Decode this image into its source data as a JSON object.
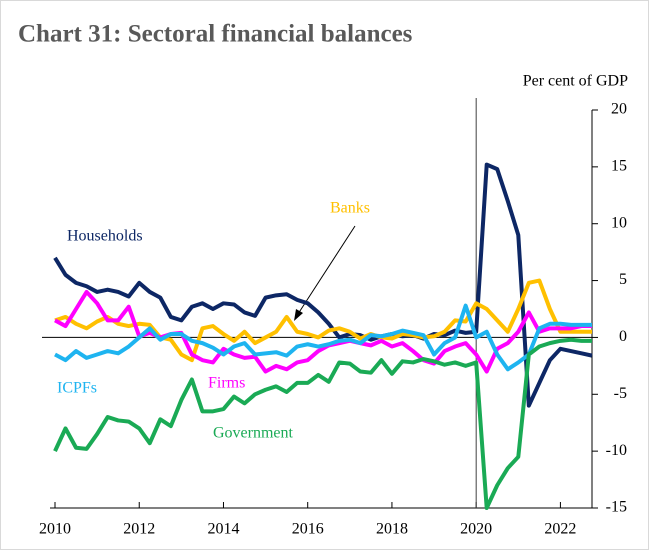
{
  "chart_data": {
    "type": "line",
    "title": "Chart 31:  Sectoral financial balances",
    "y_axis_label": "Per cent of GDP",
    "x": [
      2010,
      2010.25,
      2010.5,
      2010.75,
      2011,
      2011.25,
      2011.5,
      2011.75,
      2012,
      2012.25,
      2012.5,
      2012.75,
      2013,
      2013.25,
      2013.5,
      2013.75,
      2014,
      2014.25,
      2014.5,
      2014.75,
      2015,
      2015.25,
      2015.5,
      2015.75,
      2016,
      2016.25,
      2016.5,
      2016.75,
      2017,
      2017.25,
      2017.5,
      2017.75,
      2018,
      2018.25,
      2018.5,
      2018.75,
      2019,
      2019.25,
      2019.5,
      2019.75,
      2020,
      2020.25,
      2020.5,
      2020.75,
      2021,
      2021.25,
      2021.5,
      2021.75,
      2022,
      2022.25,
      2022.5,
      2022.75
    ],
    "series": [
      {
        "name": "Households",
        "color": "#0d2765",
        "values": [
          7,
          5.5,
          4.8,
          4.5,
          4,
          4.2,
          4,
          3.6,
          4.8,
          4.0,
          3.5,
          1.8,
          1.5,
          2.7,
          3,
          2.5,
          3,
          2.9,
          2.2,
          1.9,
          3.5,
          3.7,
          3.8,
          3.3,
          3.0,
          2.2,
          1.2,
          0,
          0.3,
          0.2,
          -0.2,
          0.1,
          0.3,
          0.1,
          0.2,
          -0.1,
          0.3,
          0.2,
          0.6,
          0.4,
          0.5,
          15.2,
          14.8,
          12,
          9,
          -6,
          -4,
          -2,
          -1,
          -1.2,
          -1.4,
          -1.6
        ]
      },
      {
        "name": "Banks",
        "color": "#ffc000",
        "values": [
          1.5,
          1.8,
          1.2,
          0.8,
          1.4,
          1.8,
          1.2,
          1.0,
          1.2,
          1.1,
          0,
          -0.2,
          -1.5,
          -2,
          0.8,
          1,
          0.3,
          -0.3,
          0.5,
          -0.5,
          0,
          0.5,
          1.8,
          0.5,
          0.3,
          0,
          0.6,
          0.8,
          0.5,
          -0.1,
          0.3,
          0,
          -0.1,
          0.3,
          0.2,
          0,
          0.1,
          0.5,
          1.5,
          1.4,
          3,
          2.5,
          1.5,
          0.5,
          2.5,
          4.8,
          5,
          2.5,
          0.5,
          0.5,
          0.5,
          0.5
        ]
      },
      {
        "name": "Firms",
        "color": "#ff00ff",
        "values": [
          1.5,
          1,
          2.5,
          4,
          3,
          1.5,
          1.5,
          2.7,
          0.1,
          0.4,
          0,
          0.3,
          0.4,
          -1.5,
          -2,
          -2.2,
          -1,
          -1.5,
          -1.8,
          -1.7,
          -3,
          -2.5,
          -2.8,
          -2.2,
          -2,
          -1.2,
          -0.7,
          -0.5,
          -0.3,
          -0.5,
          -0.7,
          -0.3,
          -0.8,
          -0.5,
          -1.2,
          -2,
          -2.3,
          -1.2,
          -0.8,
          -0.5,
          -1.5,
          -3,
          -1,
          -0.5,
          0.5,
          2.2,
          0.5,
          0.8,
          0.8,
          0.8,
          1,
          1
        ]
      },
      {
        "name": "ICPFs",
        "color": "#1eb4f0",
        "values": [
          -1.5,
          -2,
          -1.2,
          -1.8,
          -1.5,
          -1.2,
          -1.4,
          -0.8,
          0,
          0.8,
          -0.2,
          0.3,
          0.3,
          -0.3,
          -0.5,
          -0.9,
          -1.5,
          -0.8,
          -0.5,
          -1.5,
          -1.4,
          -1.3,
          -1.6,
          -0.8,
          -0.6,
          -0.8,
          -0.6,
          -0.3,
          -0.2,
          -0.5,
          0.2,
          0.1,
          0.3,
          0.6,
          0.4,
          0.2,
          -1.5,
          -0.5,
          0,
          2.8,
          0,
          0.5,
          -1.5,
          -2.8,
          -2.2,
          -1.5,
          0.8,
          1.2,
          1.2,
          1.1,
          1.1,
          1.1
        ]
      },
      {
        "name": "Government",
        "color": "#1aaa55",
        "values": [
          -10,
          -8,
          -9.7,
          -9.8,
          -8.5,
          -7,
          -7.3,
          -7.4,
          -8,
          -9.3,
          -7.2,
          -7.8,
          -5.5,
          -3.7,
          -6.5,
          -6.5,
          -6.3,
          -5.2,
          -5.8,
          -5,
          -4.6,
          -4.3,
          -4.8,
          -4,
          -4,
          -3.3,
          -3.9,
          -2.2,
          -2.3,
          -3,
          -3.1,
          -2,
          -3.2,
          -2.1,
          -2.2,
          -1.9,
          -2.1,
          -2.4,
          -2.2,
          -2.5,
          -2.2,
          -15,
          -13,
          -11.5,
          -10.5,
          -1.5,
          -0.8,
          -0.5,
          -0.3,
          -0.2,
          -0.3,
          -0.3
        ]
      }
    ],
    "xlim": [
      2010,
      2022.75
    ],
    "xticks": [
      2010,
      2012,
      2014,
      2016,
      2018,
      2020,
      2022
    ],
    "ylim": [
      -15,
      20
    ],
    "yticks": [
      20,
      15,
      10,
      5,
      0,
      -5,
      -10,
      -15
    ],
    "vline": 2020
  }
}
